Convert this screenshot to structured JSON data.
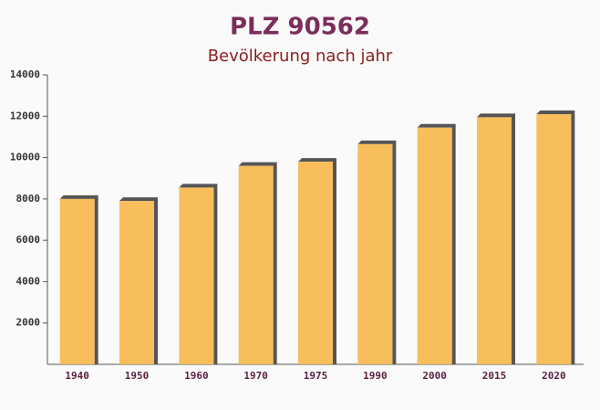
{
  "chart_data": {
    "type": "bar",
    "title": "PLZ 90562",
    "subtitle": "Bevölkerung nach jahr",
    "categories": [
      "1940",
      "1950",
      "1960",
      "1970",
      "1975",
      "1990",
      "2000",
      "2015",
      "2020"
    ],
    "values": [
      8000,
      7900,
      8550,
      9600,
      9800,
      10650,
      11450,
      11950,
      12100
    ],
    "color": "#f7bb52",
    "ylim": [
      0,
      14000
    ],
    "yticks": [
      2000,
      4000,
      6000,
      8000,
      10000,
      12000,
      14000
    ]
  }
}
